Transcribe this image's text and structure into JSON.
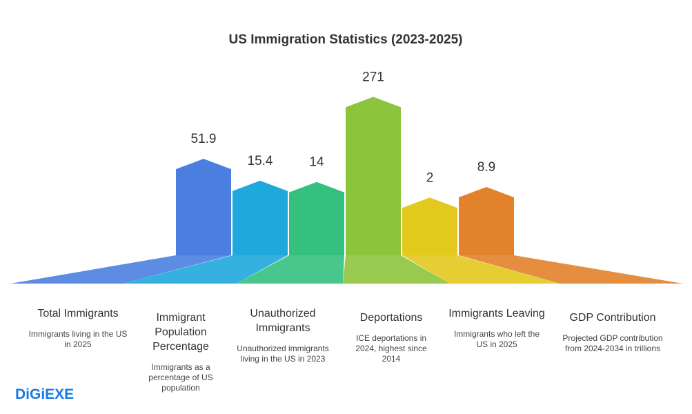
{
  "chart_data": {
    "type": "bar",
    "title": "US Immigration Statistics (2023-2025)",
    "categories": [
      "Total Immigrants",
      "Immigrant Population Percentage",
      "Unauthorized Immigrants",
      "Deportations",
      "Immigrants Leaving",
      "GDP Contribution"
    ],
    "descriptions": [
      "Immigrants living in the US in 2025",
      "Immigrants as a percentage of US population",
      "Unauthorized immigrants living in the US in 2023",
      "ICE deportations in 2024, highest since 2014",
      "Immigrants who left the US in 2025",
      "Projected GDP contribution from 2024-2034 in trillions"
    ],
    "values": [
      51.9,
      15.4,
      14,
      271,
      2,
      8.9
    ],
    "colors": [
      "#4a7fe0",
      "#1fa8dc",
      "#35c07f",
      "#8cc43c",
      "#e3c81d",
      "#e2822b"
    ]
  },
  "brand": "DiGiEXE"
}
